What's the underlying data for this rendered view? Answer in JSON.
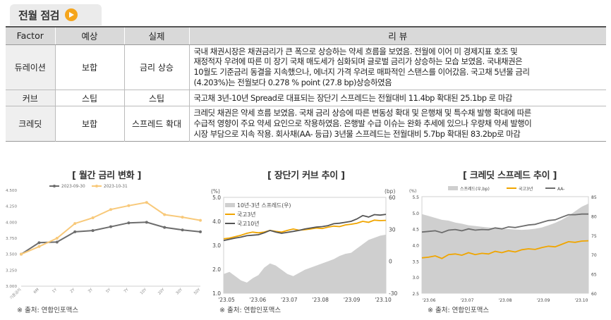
{
  "header": {
    "title": "전월 점검"
  },
  "table": {
    "headers": [
      "Factor",
      "예상",
      "실제",
      "리 뷰"
    ],
    "rows": [
      {
        "factor": "듀레이션",
        "expected": "보합",
        "actual": "금리 상승",
        "review_lines": [
          "국내 채권시장은 채권금리가 큰 폭으로 상승하는 약세 흐름을 보였음. 전월에 이어 미 경제지표 호조 및",
          "재정적자 우려에 따른 미 장기 국채 매도세가 심화되며 글로벌 금리가 상승하는 모습 보였음. 국내채권은",
          "10월도 기준금리 동결을 지속했으나, 에너지 가격 우려로 매파적인 스탠스를 이어갔음. 국고채 5년물 금리",
          "(4.203%)는 전월보다 0.278 % point (27.8 bp)상승하였음"
        ]
      },
      {
        "factor": "커브",
        "expected": "스팁",
        "actual": "스팁",
        "review_lines": [
          "국고채 3년-10년 Spread로 대표되는 장단기 스프레드는 전월대비 11.4bp 확대된 25.1bp 로 마감"
        ]
      },
      {
        "factor": "크레딧",
        "expected": "보합",
        "actual": "스프레드 확대",
        "review_lines": [
          "크레딧 채권은 약세 흐름 보였음. 국채 금리 상승에 따른 변동성 확대 및 은행채 및 특수채 발행 확대에 따른",
          "수급적 영향이 주요 약세 요인으로 작용하였음. 은행발 수급 이슈는 완화 추세에 있으나 우량채 약세 발행이",
          "시장 부담으로 지속 작용. 회사채(AA- 등급) 3년물 스프레드는 전월대비 5.7bp 확대된 83.2bp로 마감"
        ]
      }
    ]
  },
  "chart_data": [
    {
      "type": "line",
      "title": "[ 월간 금리 변화 ]",
      "categories": [
        "기준금리",
        "6M",
        "1Y",
        "2Y",
        "3Y",
        "5Y",
        "7Y",
        "10Y",
        "20Y",
        "30Y",
        "50Y"
      ],
      "series": [
        {
          "name": "2023-09-30",
          "color": "#6d6d6d",
          "values": [
            3.5,
            3.68,
            3.69,
            3.85,
            3.87,
            3.93,
            3.99,
            4.0,
            3.92,
            3.88,
            3.85
          ]
        },
        {
          "name": "2023-10-31",
          "color": "#f8c97a",
          "values": [
            3.5,
            3.62,
            3.75,
            3.98,
            4.07,
            4.2,
            4.26,
            4.31,
            4.12,
            4.08,
            4.03
          ]
        }
      ],
      "y_ticks": [
        "4.500",
        "4.250",
        "4.000",
        "3.750",
        "3.500",
        "3.250",
        "3.000"
      ],
      "ylim": [
        3.0,
        4.5
      ],
      "legend": "top-center",
      "grid": false
    },
    {
      "type": "line",
      "title": "[ 장단기 커브 추이 ]",
      "left_unit": "(%)",
      "right_unit": "(bp)",
      "x_ticks": [
        "'23.05",
        "'23.06",
        "'23.07",
        "'23.08",
        "'23.09",
        "'23.10"
      ],
      "y_left_ticks": [
        "5.0",
        "4.0",
        "3.0",
        "2.0",
        "1.0"
      ],
      "y_right_ticks": [
        "60",
        "30",
        "0",
        "-30"
      ],
      "ylim_left": [
        1.0,
        5.0
      ],
      "ylim_right": [
        -30,
        60
      ],
      "series": [
        {
          "name": "10년-3년 스프레드(우)",
          "axis": "right",
          "kind": "area",
          "color": "#cfcfcf",
          "values": [
            -12,
            -10,
            -14,
            -18,
            -20,
            -16,
            -13,
            -6,
            -2,
            -4,
            -8,
            -12,
            -14,
            -11,
            -8,
            -6,
            -4,
            -2,
            0,
            2,
            5,
            7,
            8,
            12,
            16,
            20,
            22,
            24,
            25
          ]
        },
        {
          "name": "국고3년",
          "axis": "left",
          "kind": "line",
          "color": "#f0a500",
          "values": [
            3.27,
            3.3,
            3.36,
            3.42,
            3.5,
            3.55,
            3.52,
            3.55,
            3.62,
            3.58,
            3.55,
            3.62,
            3.68,
            3.63,
            3.65,
            3.68,
            3.72,
            3.7,
            3.76,
            3.8,
            3.78,
            3.85,
            3.88,
            3.92,
            4.0,
            3.96,
            4.05,
            4.03,
            4.04
          ]
        },
        {
          "name": "국고10년",
          "axis": "left",
          "kind": "line",
          "color": "#555555",
          "values": [
            3.2,
            3.25,
            3.3,
            3.34,
            3.4,
            3.42,
            3.44,
            3.52,
            3.62,
            3.55,
            3.5,
            3.54,
            3.58,
            3.62,
            3.68,
            3.72,
            3.76,
            3.78,
            3.82,
            3.9,
            3.92,
            3.96,
            4.0,
            4.1,
            4.24,
            4.18,
            4.28,
            4.26,
            4.29
          ]
        }
      ],
      "legend": "top-left",
      "grid": false
    },
    {
      "type": "line",
      "title": "[ 크레딧 스프레드 추이 ]",
      "left_unit": "(%)",
      "right_unit": "",
      "x_ticks": [
        "'23.06",
        "'23.07",
        "'23.08",
        "'23.09",
        "'23.10"
      ],
      "y_left_ticks": [
        "5.5",
        "5.0",
        "4.5",
        "4.0",
        "3.5",
        "3.0",
        "2.5"
      ],
      "y_right_ticks": [
        "85",
        "80",
        "75",
        "70",
        "65",
        "60"
      ],
      "ylim_left": [
        2.5,
        5.5
      ],
      "ylim_right": [
        60,
        85
      ],
      "series": [
        {
          "name": "스프레드(우,bp)",
          "axis": "right",
          "kind": "area",
          "color": "#cfcfcf",
          "values": [
            80.5,
            80.0,
            79.5,
            79.0,
            78.8,
            78.3,
            78.0,
            77.6,
            77.4,
            77.2,
            77.0,
            76.9,
            76.7,
            76.6,
            76.5,
            76.4,
            76.5,
            76.7,
            77.0,
            77.6,
            78.2,
            79.0,
            80.0,
            81.2,
            82.4,
            83.2
          ]
        },
        {
          "name": "국고3년",
          "axis": "left",
          "kind": "line",
          "color": "#f0a500",
          "values": [
            3.6,
            3.62,
            3.66,
            3.58,
            3.7,
            3.72,
            3.68,
            3.76,
            3.7,
            3.74,
            3.72,
            3.8,
            3.76,
            3.82,
            3.78,
            3.85,
            3.88,
            3.86,
            3.92,
            3.96,
            3.94,
            4.02,
            4.1,
            4.08,
            4.12,
            4.13
          ]
        },
        {
          "name": "AA-",
          "axis": "left",
          "kind": "line",
          "color": "#6d6d6d",
          "values": [
            4.4,
            4.42,
            4.44,
            4.38,
            4.46,
            4.48,
            4.44,
            4.5,
            4.46,
            4.48,
            4.47,
            4.53,
            4.5,
            4.56,
            4.54,
            4.58,
            4.62,
            4.64,
            4.7,
            4.76,
            4.78,
            4.86,
            4.94,
            4.94,
            4.96,
            4.96
          ]
        }
      ],
      "legend": "top-center",
      "grid": false
    }
  ],
  "sources": [
    "※ 출처: 연합인포맥스",
    "※ 출처: 연합인포맥스",
    "※ 출처: 연합인포맥스"
  ]
}
